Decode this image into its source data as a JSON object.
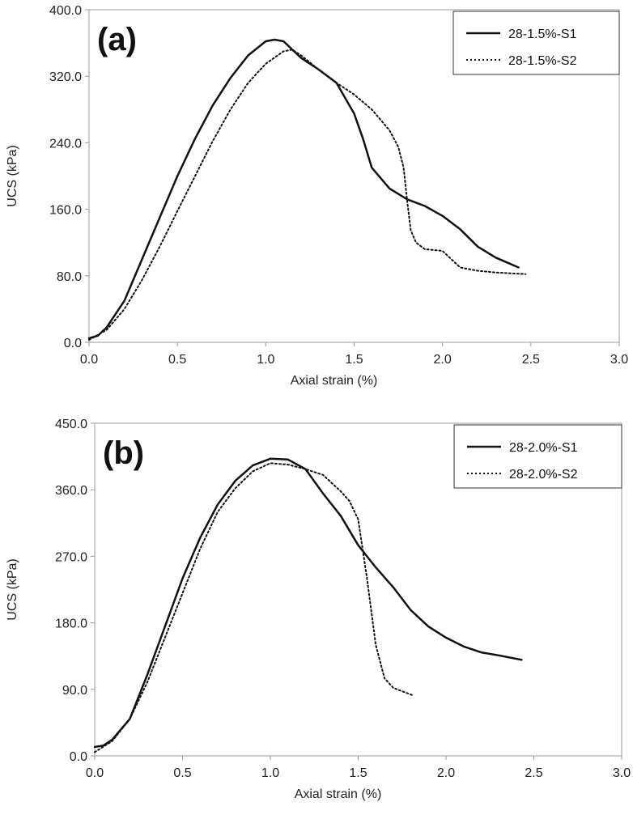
{
  "chart_data": [
    {
      "type": "line",
      "panel_label": "(a)",
      "xlabel": "Axial strain (%)",
      "ylabel": "UCS (kPa)",
      "xlim": [
        0,
        3.0
      ],
      "ylim": [
        0,
        400
      ],
      "x_ticks": [
        "0.0",
        "0.5",
        "1.0",
        "1.5",
        "2.0",
        "2.5",
        "3.0"
      ],
      "y_ticks": [
        "0.0",
        "80.0",
        "160.0",
        "240.0",
        "320.0",
        "400.0"
      ],
      "grid": false,
      "legend_position": "top-right",
      "series": [
        {
          "name": "28-1.5%-S1",
          "style": "solid",
          "points": [
            [
              0,
              5
            ],
            [
              0.05,
              8
            ],
            [
              0.1,
              18
            ],
            [
              0.2,
              50
            ],
            [
              0.3,
              100
            ],
            [
              0.4,
              150
            ],
            [
              0.5,
              200
            ],
            [
              0.6,
              245
            ],
            [
              0.7,
              285
            ],
            [
              0.8,
              318
            ],
            [
              0.9,
              345
            ],
            [
              1.0,
              362
            ],
            [
              1.05,
              364
            ],
            [
              1.1,
              362
            ],
            [
              1.2,
              342
            ],
            [
              1.3,
              328
            ],
            [
              1.4,
              312
            ],
            [
              1.5,
              275
            ],
            [
              1.55,
              245
            ],
            [
              1.6,
              210
            ],
            [
              1.7,
              185
            ],
            [
              1.8,
              172
            ],
            [
              1.9,
              164
            ],
            [
              2.0,
              152
            ],
            [
              2.1,
              136
            ],
            [
              2.2,
              115
            ],
            [
              2.3,
              102
            ],
            [
              2.43,
              90
            ]
          ]
        },
        {
          "name": "28-1.5%-S2",
          "style": "dotted",
          "points": [
            [
              0,
              3
            ],
            [
              0.1,
              15
            ],
            [
              0.2,
              40
            ],
            [
              0.3,
              75
            ],
            [
              0.4,
              115
            ],
            [
              0.5,
              158
            ],
            [
              0.6,
              200
            ],
            [
              0.7,
              242
            ],
            [
              0.8,
              280
            ],
            [
              0.9,
              312
            ],
            [
              1.0,
              335
            ],
            [
              1.1,
              350
            ],
            [
              1.15,
              352
            ],
            [
              1.2,
              345
            ],
            [
              1.3,
              328
            ],
            [
              1.4,
              312
            ],
            [
              1.5,
              298
            ],
            [
              1.6,
              280
            ],
            [
              1.7,
              255
            ],
            [
              1.75,
              235
            ],
            [
              1.78,
              210
            ],
            [
              1.8,
              170
            ],
            [
              1.82,
              135
            ],
            [
              1.85,
              120
            ],
            [
              1.9,
              112
            ],
            [
              2.0,
              110
            ],
            [
              2.05,
              100
            ],
            [
              2.1,
              90
            ],
            [
              2.2,
              86
            ],
            [
              2.3,
              84
            ],
            [
              2.47,
              82
            ]
          ]
        }
      ]
    },
    {
      "type": "line",
      "panel_label": "(b)",
      "xlabel": "Axial strain (%)",
      "ylabel": "UCS (kPa)",
      "xlim": [
        0,
        3.0
      ],
      "ylim": [
        0,
        450
      ],
      "x_ticks": [
        "0.0",
        "0.5",
        "1.0",
        "1.5",
        "2.0",
        "2.5",
        "3.0"
      ],
      "y_ticks": [
        "0.0",
        "90.0",
        "180.0",
        "270.0",
        "360.0",
        "450.0"
      ],
      "grid": false,
      "legend_position": "top-right",
      "series": [
        {
          "name": "28-2.0%-S1",
          "style": "solid",
          "points": [
            [
              0,
              12
            ],
            [
              0.05,
              14
            ],
            [
              0.1,
              22
            ],
            [
              0.2,
              50
            ],
            [
              0.3,
              110
            ],
            [
              0.4,
              175
            ],
            [
              0.5,
              240
            ],
            [
              0.6,
              295
            ],
            [
              0.7,
              340
            ],
            [
              0.8,
              372
            ],
            [
              0.9,
              393
            ],
            [
              1.0,
              402
            ],
            [
              1.1,
              401
            ],
            [
              1.2,
              388
            ],
            [
              1.3,
              355
            ],
            [
              1.4,
              325
            ],
            [
              1.5,
              285
            ],
            [
              1.6,
              255
            ],
            [
              1.7,
              228
            ],
            [
              1.8,
              197
            ],
            [
              1.9,
              175
            ],
            [
              2.0,
              160
            ],
            [
              2.1,
              148
            ],
            [
              2.2,
              140
            ],
            [
              2.3,
              136
            ],
            [
              2.43,
              130
            ]
          ]
        },
        {
          "name": "28-2.0%-S2",
          "style": "dotted",
          "points": [
            [
              0,
              5
            ],
            [
              0.1,
              20
            ],
            [
              0.2,
              50
            ],
            [
              0.3,
              100
            ],
            [
              0.4,
              160
            ],
            [
              0.5,
              220
            ],
            [
              0.6,
              280
            ],
            [
              0.7,
              330
            ],
            [
              0.8,
              362
            ],
            [
              0.9,
              385
            ],
            [
              1.0,
              396
            ],
            [
              1.1,
              394
            ],
            [
              1.2,
              388
            ],
            [
              1.3,
              380
            ],
            [
              1.4,
              358
            ],
            [
              1.45,
              345
            ],
            [
              1.5,
              320
            ],
            [
              1.55,
              240
            ],
            [
              1.6,
              150
            ],
            [
              1.65,
              105
            ],
            [
              1.7,
              92
            ],
            [
              1.81,
              82
            ]
          ]
        }
      ]
    }
  ]
}
